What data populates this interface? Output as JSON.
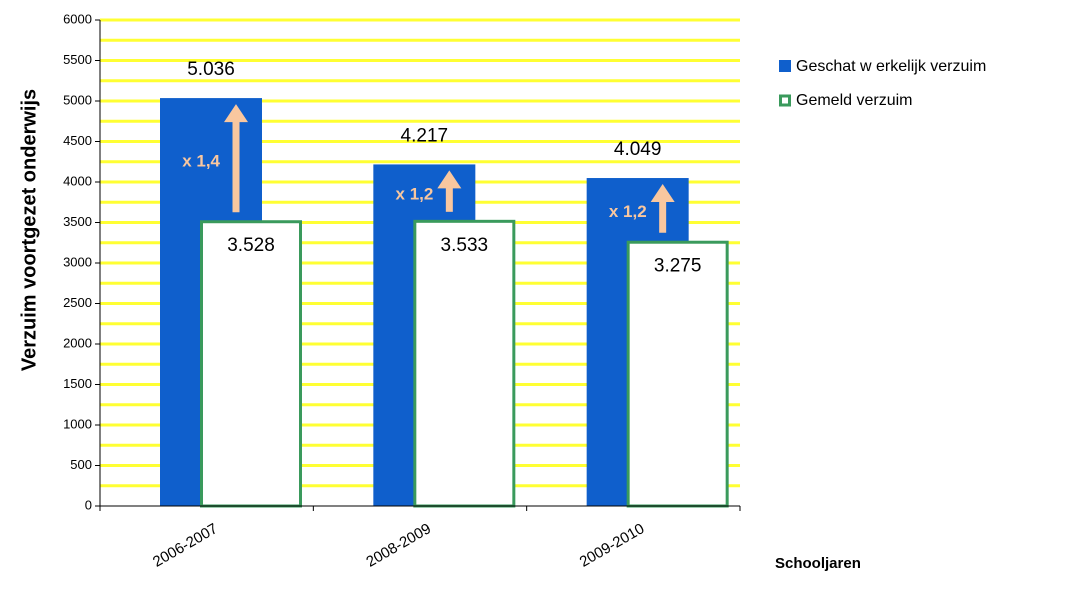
{
  "chart_data": {
    "type": "overlap_bar",
    "y_label": "Verzuim voortgezet onderwijs",
    "x_label": "Schooljaren",
    "categories": [
      "2006-2007",
      "2008-2009",
      "2009-2010"
    ],
    "series": [
      {
        "name": "Geschat w erkelijk verzuim",
        "color": "#0f5fcc",
        "values": [
          5036,
          4217,
          4049
        ],
        "value_labels": [
          "5.036",
          "4.217",
          "4.049"
        ]
      },
      {
        "name": "Gemeld verzuim",
        "color": "#3a9a5c",
        "values": [
          3528,
          3533,
          3275
        ],
        "value_labels": [
          "3.528",
          "3.533",
          "3.275"
        ]
      }
    ],
    "annotations": [
      "x 1,4",
      "x 1,2",
      "x 1,2"
    ],
    "ylim": [
      0,
      6000
    ],
    "yticks": [
      0,
      500,
      1000,
      1500,
      2000,
      2500,
      3000,
      3500,
      4000,
      4500,
      5000,
      5500,
      6000
    ],
    "minor_yticks": [
      250,
      750,
      1250,
      1750,
      2250,
      2750,
      3250,
      3750,
      4250,
      4750,
      5250,
      5750
    ],
    "grid": true,
    "grid_color": "#ffff33",
    "arrow_color": "#f9c79f",
    "legend": "right"
  }
}
